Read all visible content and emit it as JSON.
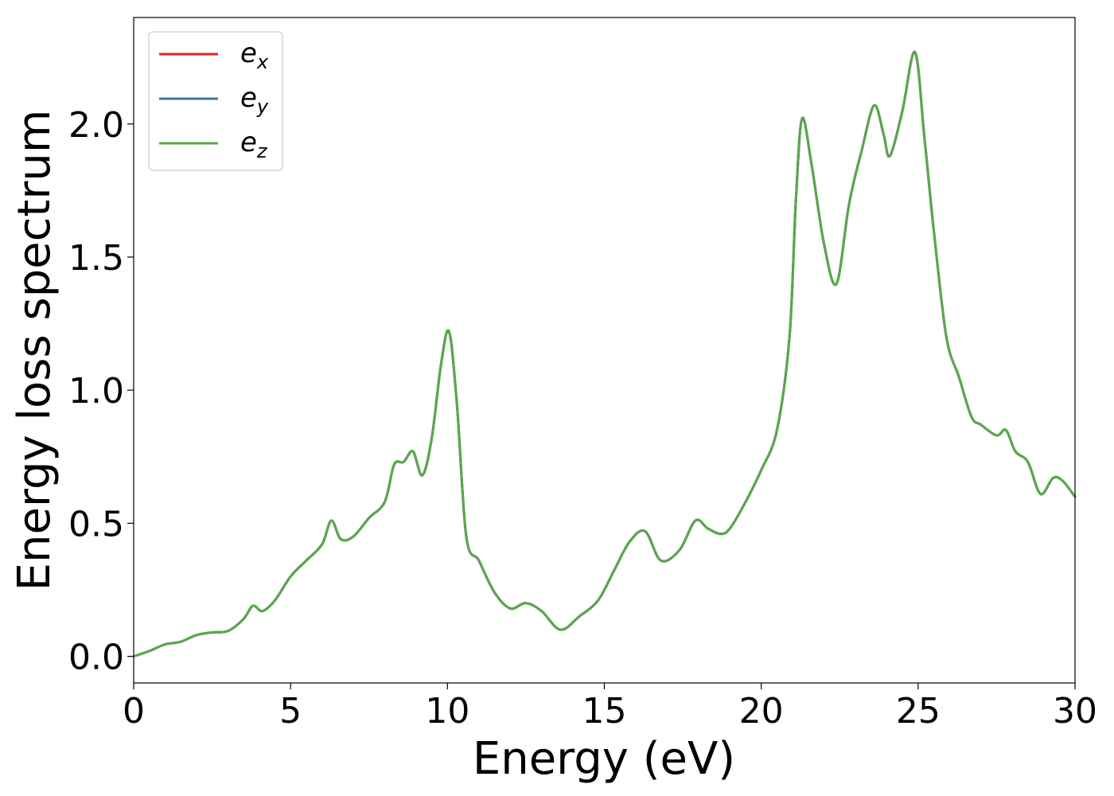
{
  "chart_data": {
    "type": "line",
    "title": "",
    "xlabel": "Energy (eV)",
    "ylabel": "Energy loss spectrum",
    "xlim": [
      0,
      30
    ],
    "ylim": [
      -0.1,
      2.4
    ],
    "xticks": [
      0,
      5,
      10,
      15,
      20,
      25,
      30
    ],
    "xtick_labels": [
      "0",
      "5",
      "10",
      "15",
      "20",
      "25",
      "30"
    ],
    "yticks": [
      0.0,
      0.5,
      1.0,
      1.5,
      2.0
    ],
    "ytick_labels": [
      "0.0",
      "0.5",
      "1.0",
      "1.5",
      "2.0"
    ],
    "grid": false,
    "legend_position": "top-left",
    "x": [
      0,
      0.5,
      1.0,
      1.5,
      2.0,
      2.5,
      3.0,
      3.5,
      3.8,
      4.1,
      4.5,
      5.0,
      5.5,
      6.0,
      6.3,
      6.6,
      7.0,
      7.5,
      8.0,
      8.3,
      8.6,
      8.9,
      9.2,
      9.5,
      9.8,
      10.05,
      10.3,
      10.6,
      11.0,
      11.5,
      12.0,
      12.5,
      13.0,
      13.6,
      14.2,
      14.8,
      15.3,
      15.8,
      16.3,
      16.8,
      17.4,
      17.9,
      18.3,
      18.7,
      19.0,
      19.5,
      20.0,
      20.5,
      20.9,
      21.1,
      21.3,
      21.6,
      22.0,
      22.4,
      22.8,
      23.2,
      23.6,
      23.9,
      24.1,
      24.5,
      24.9,
      25.2,
      25.5,
      25.9,
      26.3,
      26.7,
      27.0,
      27.5,
      27.8,
      28.1,
      28.5,
      28.9,
      29.3,
      29.6,
      30.0
    ],
    "series": [
      {
        "name": "e_x",
        "label_base": "e",
        "label_sub": "x",
        "color": "#d62728",
        "values": [
          0.0,
          0.02,
          0.045,
          0.055,
          0.08,
          0.09,
          0.095,
          0.14,
          0.19,
          0.17,
          0.21,
          0.3,
          0.36,
          0.42,
          0.51,
          0.44,
          0.45,
          0.52,
          0.58,
          0.72,
          0.73,
          0.77,
          0.68,
          0.82,
          1.1,
          1.22,
          0.95,
          0.45,
          0.36,
          0.24,
          0.18,
          0.2,
          0.17,
          0.1,
          0.15,
          0.21,
          0.32,
          0.43,
          0.47,
          0.36,
          0.4,
          0.51,
          0.48,
          0.46,
          0.48,
          0.58,
          0.7,
          0.85,
          1.2,
          1.7,
          2.02,
          1.85,
          1.55,
          1.4,
          1.7,
          1.9,
          2.07,
          1.96,
          1.88,
          2.05,
          2.27,
          1.95,
          1.6,
          1.2,
          1.05,
          0.9,
          0.87,
          0.83,
          0.85,
          0.77,
          0.73,
          0.61,
          0.67,
          0.66,
          0.6
        ]
      },
      {
        "name": "e_y",
        "label_base": "e",
        "label_sub": "y",
        "color": "#3a75a8",
        "values": [
          0.0,
          0.02,
          0.045,
          0.055,
          0.08,
          0.09,
          0.095,
          0.14,
          0.19,
          0.17,
          0.21,
          0.3,
          0.36,
          0.42,
          0.51,
          0.44,
          0.45,
          0.52,
          0.58,
          0.72,
          0.73,
          0.77,
          0.68,
          0.82,
          1.1,
          1.22,
          0.95,
          0.45,
          0.36,
          0.24,
          0.18,
          0.2,
          0.17,
          0.1,
          0.15,
          0.21,
          0.32,
          0.43,
          0.47,
          0.36,
          0.4,
          0.51,
          0.48,
          0.46,
          0.48,
          0.58,
          0.7,
          0.85,
          1.2,
          1.7,
          2.02,
          1.85,
          1.55,
          1.4,
          1.7,
          1.9,
          2.07,
          1.96,
          1.88,
          2.05,
          2.27,
          1.95,
          1.6,
          1.2,
          1.05,
          0.9,
          0.87,
          0.83,
          0.85,
          0.77,
          0.73,
          0.61,
          0.67,
          0.66,
          0.6
        ]
      },
      {
        "name": "e_z",
        "label_base": "e",
        "label_sub": "z",
        "color": "#59a84b",
        "values": [
          0.0,
          0.02,
          0.045,
          0.055,
          0.08,
          0.09,
          0.095,
          0.14,
          0.19,
          0.17,
          0.21,
          0.3,
          0.36,
          0.42,
          0.51,
          0.44,
          0.45,
          0.52,
          0.58,
          0.72,
          0.73,
          0.77,
          0.68,
          0.82,
          1.1,
          1.22,
          0.95,
          0.45,
          0.36,
          0.24,
          0.18,
          0.2,
          0.17,
          0.1,
          0.15,
          0.21,
          0.32,
          0.43,
          0.47,
          0.36,
          0.4,
          0.51,
          0.48,
          0.46,
          0.48,
          0.58,
          0.7,
          0.85,
          1.2,
          1.7,
          2.02,
          1.85,
          1.55,
          1.4,
          1.7,
          1.9,
          2.07,
          1.96,
          1.88,
          2.05,
          2.27,
          1.95,
          1.6,
          1.2,
          1.05,
          0.9,
          0.87,
          0.83,
          0.85,
          0.77,
          0.73,
          0.61,
          0.67,
          0.66,
          0.6
        ]
      }
    ]
  }
}
